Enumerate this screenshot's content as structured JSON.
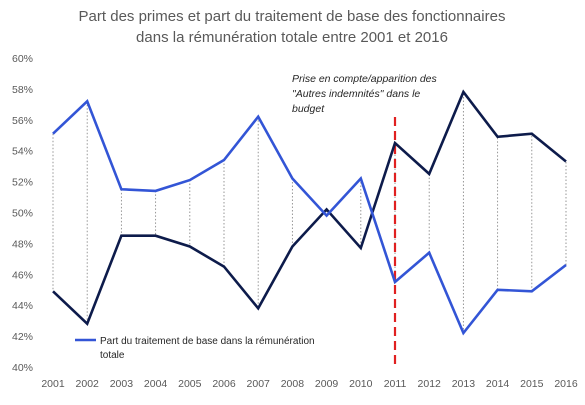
{
  "chart_data": {
    "type": "line",
    "title_lines": [
      "Part des primes et part du traitement de base des fonctionnaires",
      "dans la rémunération totale entre 2001 et 2016"
    ],
    "x": [
      "2001",
      "2002",
      "2003",
      "2004",
      "2005",
      "2006",
      "2007",
      "2008",
      "2009",
      "2010",
      "2011",
      "2012",
      "2013",
      "2014",
      "2015",
      "2016"
    ],
    "ylim": [
      40,
      60
    ],
    "yticks": [
      40,
      42,
      44,
      46,
      48,
      50,
      52,
      54,
      56,
      58,
      60
    ],
    "ytick_labels": [
      "40%",
      "42%",
      "44%",
      "46%",
      "48%",
      "50%",
      "52%",
      "54%",
      "56%",
      "58%",
      "60%"
    ],
    "series": [
      {
        "name": "Part du traitement de base dans la rémunération totale",
        "color": "#3355D6",
        "values": [
          55.1,
          57.2,
          51.5,
          51.4,
          52.1,
          53.4,
          56.2,
          52.2,
          49.8,
          52.2,
          45.5,
          47.4,
          42.2,
          45.0,
          44.9,
          46.6
        ]
      },
      {
        "color": "#0D1B4B",
        "values": [
          44.9,
          42.8,
          48.5,
          48.5,
          47.8,
          46.5,
          43.8,
          47.8,
          50.2,
          47.7,
          54.5,
          52.5,
          57.8,
          54.9,
          55.1,
          53.3
        ]
      }
    ],
    "vline": {
      "x": "2011",
      "color": "#E02020"
    },
    "annotation_lines": [
      "Prise en compte/apparition des",
      "\"Autres indemnités\" dans le",
      "budget"
    ],
    "legend_lines": [
      "Part du traitement de base dans la rémunération",
      "totale"
    ],
    "legend_position": "bottom-left",
    "connector_lines": true,
    "grid": false
  }
}
